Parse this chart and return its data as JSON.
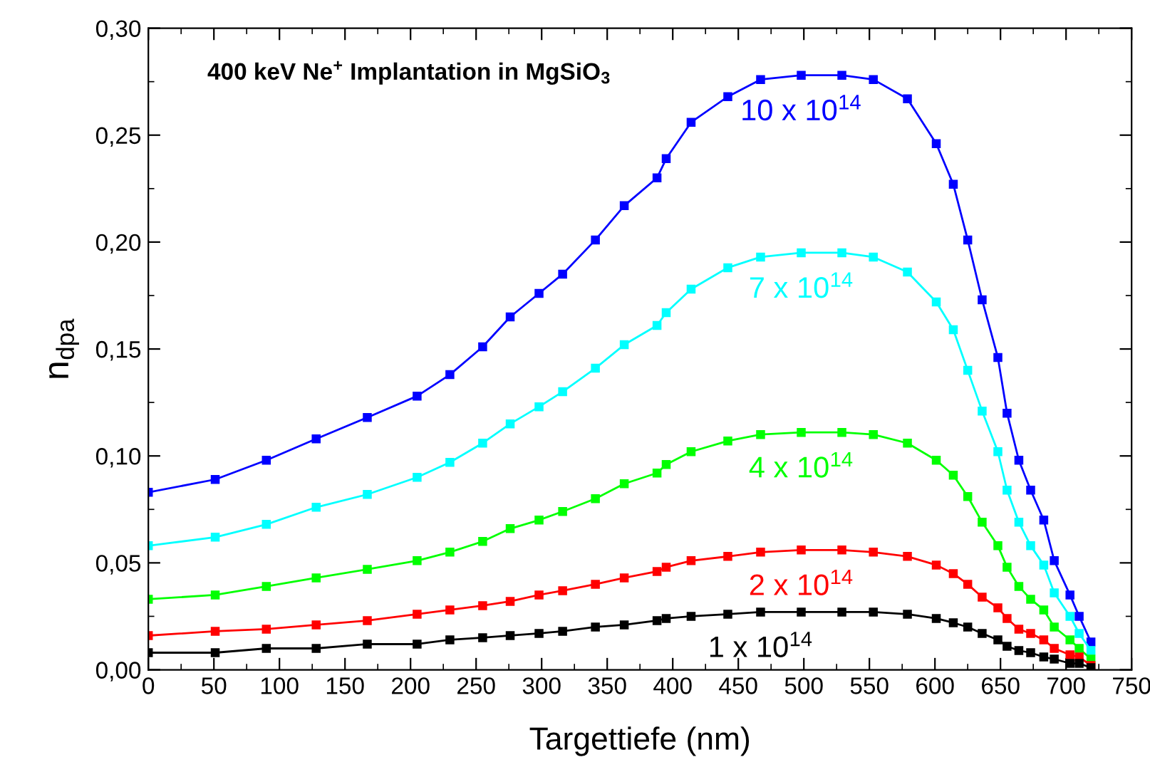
{
  "chart_data": {
    "type": "line",
    "title": "400 keV Ne$^{+}$ Implantation in MgSiO$_{3}$",
    "xlabel": "Targettiefe (nm)",
    "ylabel": "n$_{dpa}$",
    "x": [
      0,
      51,
      90,
      128,
      167,
      205,
      230,
      255,
      276,
      298,
      316,
      341,
      363,
      388,
      395,
      414,
      442,
      467,
      498,
      529,
      553,
      579,
      601,
      614,
      625,
      636,
      648,
      655,
      664,
      673,
      683,
      691,
      703,
      710,
      719
    ],
    "series": [
      {
        "name": "10 x 10$^{14}$",
        "color": "#0000ff",
        "values": [
          0.083,
          0.089,
          0.098,
          0.108,
          0.118,
          0.128,
          0.138,
          0.151,
          0.165,
          0.176,
          0.185,
          0.201,
          0.217,
          0.23,
          0.239,
          0.256,
          0.268,
          0.276,
          0.278,
          0.278,
          0.276,
          0.267,
          0.246,
          0.227,
          0.201,
          0.173,
          0.146,
          0.12,
          0.098,
          0.084,
          0.07,
          0.051,
          0.035,
          0.025,
          0.013
        ]
      },
      {
        "name": "7 x 10$^{14}$",
        "color": "#00ffff",
        "values": [
          0.058,
          0.062,
          0.068,
          0.076,
          0.082,
          0.09,
          0.097,
          0.106,
          0.115,
          0.123,
          0.13,
          0.141,
          0.152,
          0.161,
          0.167,
          0.178,
          0.188,
          0.193,
          0.195,
          0.195,
          0.193,
          0.186,
          0.172,
          0.159,
          0.14,
          0.121,
          0.102,
          0.084,
          0.069,
          0.058,
          0.049,
          0.036,
          0.025,
          0.017,
          0.009
        ]
      },
      {
        "name": "4 x 10$^{14}$",
        "color": "#00ff00",
        "values": [
          0.033,
          0.035,
          0.039,
          0.043,
          0.047,
          0.051,
          0.055,
          0.06,
          0.066,
          0.07,
          0.074,
          0.08,
          0.087,
          0.092,
          0.096,
          0.102,
          0.107,
          0.11,
          0.111,
          0.111,
          0.11,
          0.106,
          0.098,
          0.091,
          0.081,
          0.069,
          0.058,
          0.048,
          0.039,
          0.033,
          0.028,
          0.02,
          0.014,
          0.01,
          0.005
        ]
      },
      {
        "name": "2 x 10$^{14}$",
        "color": "#ff0000",
        "values": [
          0.016,
          0.018,
          0.019,
          0.021,
          0.023,
          0.026,
          0.028,
          0.03,
          0.032,
          0.035,
          0.037,
          0.04,
          0.043,
          0.046,
          0.048,
          0.051,
          0.053,
          0.055,
          0.056,
          0.056,
          0.055,
          0.053,
          0.049,
          0.045,
          0.04,
          0.034,
          0.029,
          0.024,
          0.019,
          0.017,
          0.014,
          0.01,
          0.007,
          0.006,
          0.002
        ]
      },
      {
        "name": "1 x 10$^{14}$",
        "color": "#000000",
        "values": [
          0.008,
          0.008,
          0.01,
          0.01,
          0.012,
          0.012,
          0.014,
          0.015,
          0.016,
          0.017,
          0.018,
          0.02,
          0.021,
          0.023,
          0.024,
          0.025,
          0.026,
          0.027,
          0.027,
          0.027,
          0.027,
          0.026,
          0.024,
          0.022,
          0.02,
          0.017,
          0.014,
          0.011,
          0.009,
          0.008,
          0.006,
          0.005,
          0.003,
          0.003,
          0.001
        ]
      }
    ],
    "xlim": [
      0,
      750
    ],
    "xticks": [
      0,
      {
        "value": 25,
        "label": null
      },
      50,
      {
        "value": 75,
        "label": null
      },
      100,
      {
        "value": 125,
        "label": null
      },
      150,
      {
        "value": 175,
        "label": null
      },
      200,
      {
        "value": 225,
        "label": null
      },
      250,
      {
        "value": 275,
        "label": null
      },
      300,
      {
        "value": 325,
        "label": null
      },
      350,
      {
        "value": 375,
        "label": null
      },
      400,
      {
        "value": 425,
        "label": null
      },
      450,
      {
        "value": 475,
        "label": null
      },
      500,
      {
        "value": 525,
        "label": null
      },
      550,
      {
        "value": 575,
        "label": null
      },
      600,
      {
        "value": 625,
        "label": null
      },
      650,
      {
        "value": 675,
        "label": null
      },
      700,
      {
        "value": 725,
        "label": null
      },
      750
    ],
    "ylim": [
      0,
      0.3
    ],
    "yticks": [
      {
        "value": 0,
        "label": "0,00"
      },
      {
        "value": 0.025,
        "label": null
      },
      {
        "value": 0.05,
        "label": "0,05"
      },
      {
        "value": 0.075,
        "label": null
      },
      {
        "value": 0.1,
        "label": "0,10"
      },
      {
        "value": 0.125,
        "label": null
      },
      {
        "value": 0.15,
        "label": "0,15"
      },
      {
        "value": 0.175,
        "label": null
      },
      {
        "value": 0.2,
        "label": "0,20"
      },
      {
        "value": 0.225,
        "label": null
      },
      {
        "value": 0.25,
        "label": "0,25"
      },
      {
        "value": 0.275,
        "label": null
      },
      {
        "value": 0.3,
        "label": "0,30"
      }
    ],
    "marker": "square",
    "line_style": "solid",
    "grid": false,
    "legend": false
  }
}
